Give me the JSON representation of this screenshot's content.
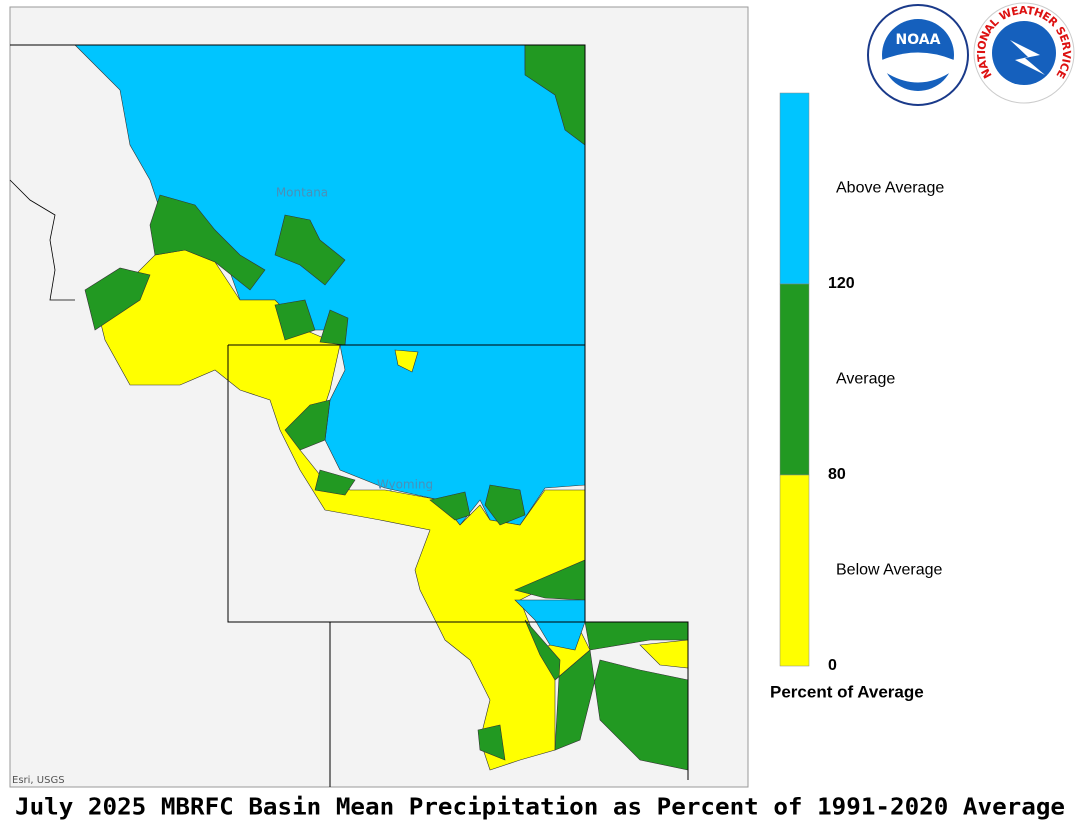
{
  "map": {
    "title": "July 2025 MBRFC Basin Mean Precipitation as Percent of 1991-2020 Average",
    "places": [
      "Montana",
      "Wyoming"
    ],
    "credit": "Esri, USGS",
    "logos": {
      "noaa": "NOAA",
      "nws": "NATIONAL WEATHER SERVICE"
    },
    "legend": {
      "title": "Percent of Average",
      "classes": [
        {
          "label": "Above Average",
          "color": "#00c5ff"
        },
        {
          "label": "Average",
          "color": "#229922"
        },
        {
          "label": "Below Average",
          "color": "#ffff00"
        }
      ],
      "breaks": [
        120,
        80,
        0
      ]
    }
  }
}
